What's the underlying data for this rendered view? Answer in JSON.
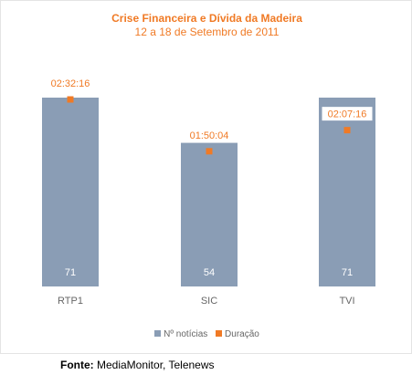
{
  "chart_data": {
    "type": "bar",
    "title": "Crise Financeira e Dívida da Madeira",
    "subtitle": "12 a 18 de Setembro de 2011",
    "categories": [
      "RTP1",
      "SIC",
      "TVI"
    ],
    "series": [
      {
        "name": "Nº notícias",
        "values": [
          71,
          54,
          71
        ],
        "color": "#8a9db5",
        "kind": "bar"
      },
      {
        "name": "Duração",
        "values": [
          "02:32:16",
          "01:50:04",
          "02:07:16"
        ],
        "color": "#f07a25",
        "kind": "point"
      }
    ],
    "ylim": [
      0,
      71
    ],
    "grid": false,
    "legend_position": "bottom"
  },
  "source": {
    "label": "Fonte:",
    "text": " MediaMonitor, Telenews"
  }
}
